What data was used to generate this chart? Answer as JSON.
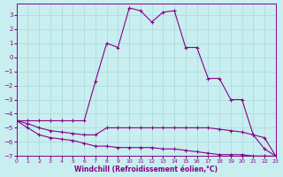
{
  "xlabel": "Windchill (Refroidissement éolien,°C)",
  "background_color": "#c8eef0",
  "grid_color": "#a8d8dc",
  "line_color": "#880088",
  "xlim": [
    0,
    23
  ],
  "ylim": [
    -7,
    3.8
  ],
  "xticks": [
    0,
    1,
    2,
    3,
    4,
    5,
    6,
    7,
    8,
    9,
    10,
    11,
    12,
    13,
    14,
    15,
    16,
    17,
    18,
    19,
    20,
    21,
    22,
    23
  ],
  "yticks": [
    -7,
    -6,
    -5,
    -4,
    -3,
    -2,
    -1,
    0,
    1,
    2,
    3
  ],
  "line1_x": [
    0,
    1,
    2,
    3,
    4,
    5,
    6,
    7,
    8,
    9,
    10,
    11,
    12,
    13,
    14,
    15,
    16,
    17,
    18,
    19,
    20,
    21,
    22,
    23
  ],
  "line1_y": [
    -4.5,
    -4.7,
    -5.0,
    -5.2,
    -5.3,
    -5.4,
    -5.5,
    -5.5,
    -5.0,
    -5.0,
    -5.0,
    -5.0,
    -5.0,
    -5.0,
    -5.0,
    -5.0,
    -5.0,
    -5.0,
    -5.1,
    -5.2,
    -5.3,
    -5.5,
    -5.7,
    -7.0
  ],
  "line2_x": [
    0,
    1,
    2,
    3,
    4,
    5,
    6,
    7,
    8,
    9,
    10,
    11,
    12,
    13,
    14,
    15,
    16,
    17,
    18,
    19,
    20,
    21,
    22,
    23
  ],
  "line2_y": [
    -4.5,
    -5.0,
    -5.5,
    -5.7,
    -5.8,
    -5.9,
    -6.1,
    -6.3,
    -6.3,
    -6.4,
    -6.4,
    -6.4,
    -6.4,
    -6.5,
    -6.5,
    -6.6,
    -6.7,
    -6.8,
    -6.9,
    -6.9,
    -6.9,
    -7.0,
    -7.0,
    -7.0
  ],
  "line3_x": [
    0,
    1,
    2,
    3,
    4,
    5,
    6,
    7,
    8,
    9,
    10,
    11,
    12,
    13,
    14,
    15,
    16,
    17,
    18,
    19,
    20,
    21,
    22,
    23
  ],
  "line3_y": [
    -4.5,
    -4.5,
    -4.5,
    -4.5,
    -4.5,
    -4.5,
    -4.5,
    -1.7,
    1.0,
    0.7,
    3.5,
    3.3,
    2.5,
    3.2,
    3.3,
    0.7,
    0.7,
    -1.5,
    -1.5,
    -3.0,
    -3.0,
    -5.5,
    -6.5,
    -7.0
  ]
}
